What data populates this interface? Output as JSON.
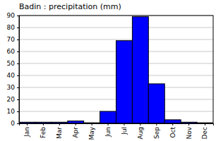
{
  "chart_data": {
    "type": "bar",
    "title": "Badin : precipitation (mm)",
    "categories": [
      "Jan",
      "Feb",
      "Mar",
      "Apr",
      "May",
      "Jun",
      "Jul",
      "Aug",
      "Sep",
      "Oct",
      "Nov",
      "Dec"
    ],
    "values": [
      1,
      1,
      1,
      2,
      0.5,
      10,
      69,
      89,
      33,
      3,
      1,
      0.5
    ],
    "color": "#0000ff",
    "ylim": [
      0,
      90
    ],
    "yticks": [
      0,
      10,
      20,
      30,
      40,
      50,
      60,
      70,
      80,
      90
    ],
    "grid": true
  }
}
